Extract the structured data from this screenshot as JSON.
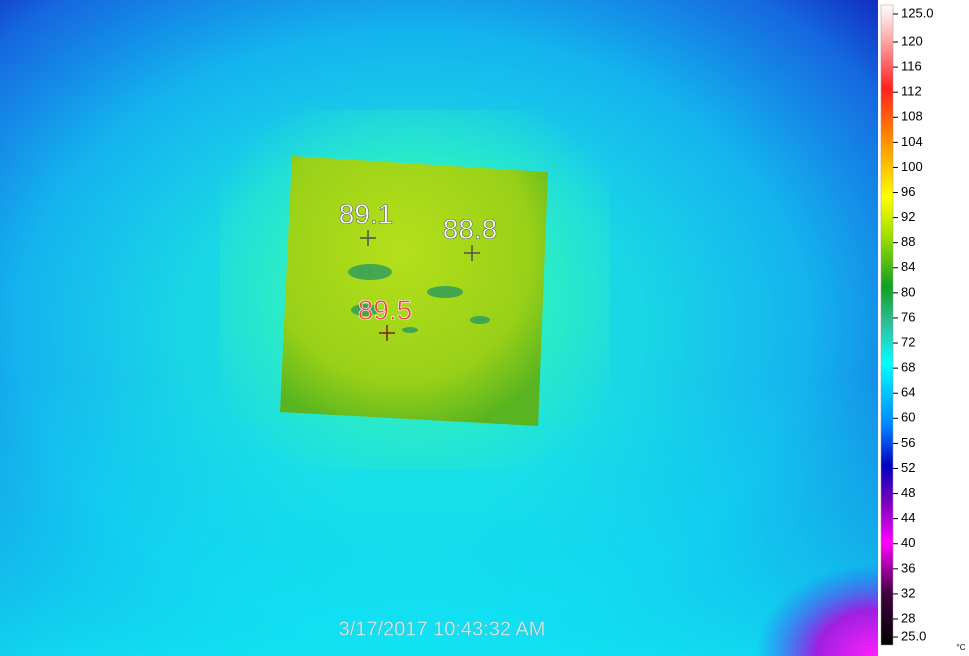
{
  "image": {
    "spots": [
      {
        "label": "89.1"
      },
      {
        "label": "88.8"
      },
      {
        "label": "89.5"
      }
    ],
    "timestamp": "3/17/2017 10:43:32 AM"
  },
  "scale": {
    "ticks": [
      "125.0",
      "120",
      "116",
      "112",
      "108",
      "104",
      "100",
      "96",
      "92",
      "88",
      "84",
      "80",
      "76",
      "72",
      "68",
      "64",
      "60",
      "56",
      "52",
      "48",
      "44",
      "40",
      "36",
      "32",
      "28",
      "25.0"
    ],
    "unit": "°C"
  }
}
